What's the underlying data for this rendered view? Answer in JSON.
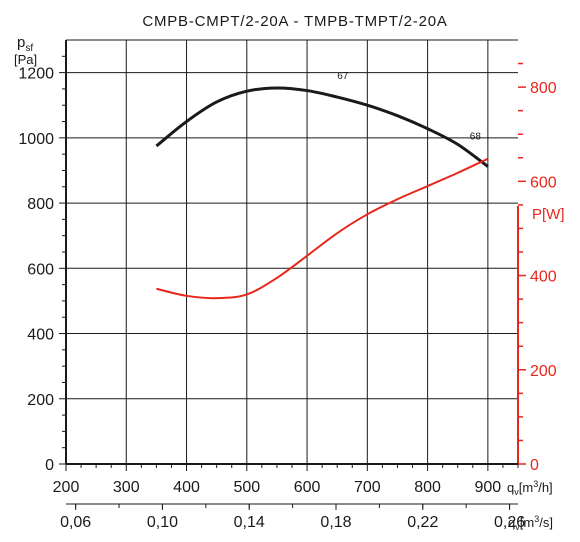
{
  "chart_data": {
    "type": "line",
    "title": "CMPB-CMPT/2-20A - TMPB-TMPT/2-20A",
    "left_axis": {
      "label_main": "p",
      "label_sub": "sf",
      "unit": "[Pa]",
      "ylim": [
        0,
        1300
      ],
      "ticks": [
        "0",
        "200",
        "400",
        "600",
        "800",
        "1000",
        "1200"
      ],
      "tick_values": [
        0,
        200,
        400,
        600,
        800,
        1000,
        1200
      ]
    },
    "right_axis": {
      "label": "P[W]",
      "ylim": [
        0,
        900
      ],
      "ticks": [
        "0",
        "200",
        "400",
        "600",
        "800"
      ],
      "tick_values": [
        0,
        200,
        400,
        600,
        800
      ]
    },
    "x_axis_m3h": {
      "label_prefix": "q",
      "label_sub": "v",
      "label_unit": "[m",
      "label_sup": "3",
      "label_end": "/h]",
      "xlim": [
        200,
        950
      ],
      "ticks": [
        "200",
        "300",
        "400",
        "500",
        "600",
        "700",
        "800",
        "900"
      ],
      "tick_values": [
        200,
        300,
        400,
        500,
        600,
        700,
        800,
        900
      ]
    },
    "x_axis_m3s": {
      "label_prefix": "q",
      "label_sub": "v",
      "label_unit": "[m",
      "label_sup": "3",
      "label_end": "/s]",
      "ticks": [
        "0,06",
        "0,10",
        "0,14",
        "0,18",
        "0,22",
        "0,26"
      ],
      "tick_values": [
        0.06,
        0.1,
        0.14,
        0.18,
        0.22,
        0.26
      ]
    },
    "series": [
      {
        "axis": "left",
        "color": "#1a1a1a",
        "x": [
          350,
          400,
          450,
          500,
          550,
          600,
          650,
          700,
          750,
          800,
          850,
          900
        ],
        "y": [
          975,
          1050,
          1110,
          1143,
          1153,
          1145,
          1125,
          1100,
          1068,
          1028,
          980,
          912
        ]
      },
      {
        "axis": "right",
        "color": "#e8261c",
        "x": [
          350,
          400,
          450,
          500,
          550,
          600,
          650,
          700,
          750,
          800,
          850,
          900
        ],
        "y": [
          372,
          357,
          352,
          360,
          395,
          442,
          490,
          530,
          562,
          590,
          618,
          648
        ]
      }
    ],
    "annotations": [
      {
        "text": "67",
        "x": 650,
        "y": 1180,
        "axis": "left"
      },
      {
        "text": "68",
        "x": 870,
        "y": 995,
        "axis": "left"
      }
    ],
    "grid": true,
    "colors": {
      "left": "#1a1a1a",
      "right": "#e8261c",
      "grid": "#1a1a1a"
    }
  }
}
